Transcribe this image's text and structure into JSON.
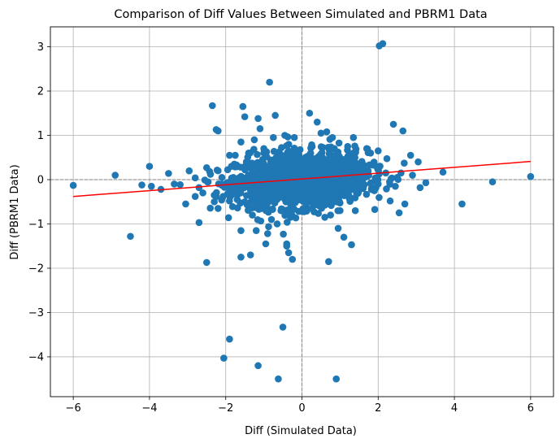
{
  "chart_data": {
    "type": "scatter",
    "title": "Comparison of Diff Values Between Simulated and PBRM1 Data",
    "xlabel": "Diff (Simulated Data)",
    "ylabel": "Diff (PBRM1 Data)",
    "xlim": [
      -6.6,
      6.6
    ],
    "ylim": [
      -4.9,
      3.45
    ],
    "xticks": [
      -6,
      -4,
      -2,
      0,
      2,
      4,
      6
    ],
    "yticks": [
      -4,
      -3,
      -2,
      -1,
      0,
      1,
      2,
      3
    ],
    "grid": true,
    "reference_lines": [
      {
        "axis": "x",
        "value": 0,
        "style": "dashed"
      },
      {
        "axis": "y",
        "value": 0,
        "style": "dashed"
      }
    ],
    "point_color": "#1f77b4",
    "fit_line": {
      "color": "#ff0000",
      "x": [
        -6,
        6
      ],
      "y": [
        -0.38,
        0.41
      ]
    },
    "points": [
      [
        -6.0,
        -0.13
      ],
      [
        -4.9,
        0.1
      ],
      [
        -4.5,
        -1.28
      ],
      [
        -4.2,
        -0.12
      ],
      [
        -4.0,
        0.3
      ],
      [
        -3.95,
        -0.15
      ],
      [
        -3.7,
        -0.22
      ],
      [
        -3.5,
        0.14
      ],
      [
        -3.35,
        -0.1
      ],
      [
        -3.05,
        -0.55
      ],
      [
        -2.8,
        0.04
      ],
      [
        -2.8,
        -0.38
      ],
      [
        -2.7,
        -0.97
      ],
      [
        -2.7,
        -0.18
      ],
      [
        -2.6,
        -0.3
      ],
      [
        -2.5,
        -1.87
      ],
      [
        -2.5,
        0.27
      ],
      [
        -2.4,
        0.12
      ],
      [
        -2.35,
        1.67
      ],
      [
        -2.3,
        -0.5
      ],
      [
        -2.3,
        -0.35
      ],
      [
        -2.25,
        1.13
      ],
      [
        -2.2,
        1.1
      ],
      [
        -2.2,
        -0.65
      ],
      [
        -2.2,
        0.2
      ],
      [
        -2.1,
        -0.1
      ],
      [
        -2.1,
        0.05
      ],
      [
        -2.05,
        -4.03
      ],
      [
        -1.95,
        -0.32
      ],
      [
        -1.9,
        -3.6
      ],
      [
        -1.9,
        0.55
      ],
      [
        -1.85,
        0.3
      ],
      [
        -1.85,
        -0.2
      ],
      [
        -1.8,
        0.05
      ],
      [
        -1.75,
        0.55
      ],
      [
        -1.7,
        -0.35
      ],
      [
        -1.6,
        -1.15
      ],
      [
        -1.6,
        -1.75
      ],
      [
        -1.6,
        0.85
      ],
      [
        -1.55,
        1.65
      ],
      [
        -1.5,
        1.42
      ],
      [
        -1.5,
        -0.5
      ],
      [
        -1.45,
        0.3
      ],
      [
        -1.4,
        0.6
      ],
      [
        -1.35,
        -1.7
      ],
      [
        -1.3,
        -0.8
      ],
      [
        -1.25,
        0.9
      ],
      [
        -1.2,
        -1.15
      ],
      [
        -1.15,
        -4.2
      ],
      [
        -1.15,
        1.38
      ],
      [
        -1.1,
        1.15
      ],
      [
        -1.05,
        -0.65
      ],
      [
        -1.0,
        0.7
      ],
      [
        -0.95,
        -1.45
      ],
      [
        -0.9,
        -1.22
      ],
      [
        -0.85,
        2.2
      ],
      [
        -0.8,
        -0.9
      ],
      [
        -0.75,
        0.95
      ],
      [
        -0.7,
        1.45
      ],
      [
        -0.65,
        -1.0
      ],
      [
        -0.62,
        -4.5
      ],
      [
        -0.6,
        0.2
      ],
      [
        -0.55,
        -0.7
      ],
      [
        -0.5,
        -3.33
      ],
      [
        -0.45,
        1.0
      ],
      [
        -0.4,
        -1.45
      ],
      [
        -0.4,
        -1.5
      ],
      [
        -0.35,
        -1.65
      ],
      [
        -0.3,
        -0.85
      ],
      [
        -0.25,
        -1.8
      ],
      [
        -0.2,
        0.95
      ],
      [
        -0.15,
        -0.15
      ],
      [
        0.2,
        1.5
      ],
      [
        0.4,
        1.3
      ],
      [
        0.5,
        1.05
      ],
      [
        0.6,
        -0.85
      ],
      [
        0.65,
        1.08
      ],
      [
        0.7,
        -1.85
      ],
      [
        0.75,
        -0.8
      ],
      [
        0.8,
        0.95
      ],
      [
        0.85,
        0.7
      ],
      [
        0.9,
        -4.5
      ],
      [
        0.95,
        -1.1
      ],
      [
        1.0,
        -0.7
      ],
      [
        1.1,
        -1.3
      ],
      [
        1.2,
        0.75
      ],
      [
        1.3,
        -1.47
      ],
      [
        1.35,
        0.95
      ],
      [
        1.4,
        -0.7
      ],
      [
        1.5,
        0.3
      ],
      [
        1.6,
        -0.2
      ],
      [
        1.7,
        0.7
      ],
      [
        1.8,
        0.6
      ],
      [
        1.9,
        -0.25
      ],
      [
        1.95,
        0.3
      ],
      [
        2.0,
        0.65
      ],
      [
        2.0,
        -0.1
      ],
      [
        2.03,
        3.02
      ],
      [
        2.12,
        3.07
      ],
      [
        2.2,
        0.15
      ],
      [
        2.3,
        -0.05
      ],
      [
        2.4,
        1.25
      ],
      [
        2.45,
        -0.15
      ],
      [
        2.5,
        0.05
      ],
      [
        2.55,
        -0.75
      ],
      [
        2.6,
        0.15
      ],
      [
        2.65,
        1.1
      ],
      [
        2.7,
        -0.55
      ],
      [
        2.85,
        0.55
      ],
      [
        2.9,
        0.1
      ],
      [
        3.05,
        0.4
      ],
      [
        3.1,
        -0.18
      ],
      [
        3.25,
        -0.07
      ],
      [
        3.7,
        0.17
      ],
      [
        4.2,
        -0.55
      ],
      [
        5.0,
        -0.05
      ],
      [
        6.0,
        0.07
      ]
    ],
    "dense_cluster": {
      "count": 1400,
      "x_center": 0,
      "x_spread": 0.85,
      "y_center": 0.0,
      "y_spread": 0.3
    }
  }
}
